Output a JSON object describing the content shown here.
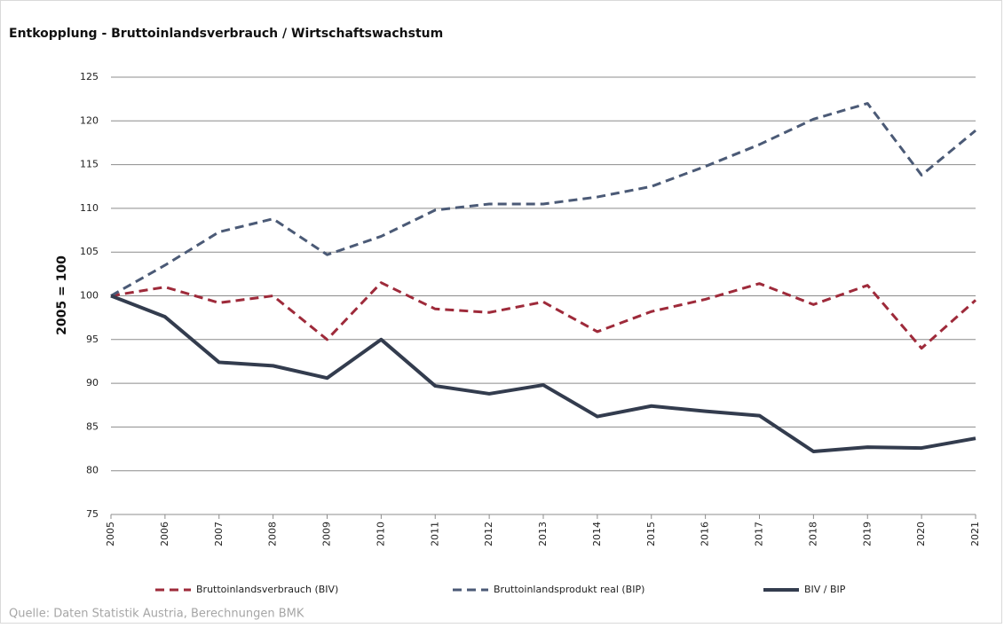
{
  "chart_data": {
    "type": "line",
    "title": "Entkopplung - Bruttoinlandsverbrauch / Wirtschaftswachstum",
    "y_label": "2005 = 100",
    "source": "Quelle: Daten Statistik Austria, Berechnungen BMK",
    "x": [
      2005,
      2006,
      2007,
      2008,
      2009,
      2010,
      2011,
      2012,
      2013,
      2014,
      2015,
      2016,
      2017,
      2018,
      2019,
      2020,
      2021
    ],
    "xlim": [
      2005,
      2021
    ],
    "xticks": [
      2005,
      2006,
      2007,
      2008,
      2009,
      2010,
      2011,
      2012,
      2013,
      2014,
      2015,
      2016,
      2017,
      2018,
      2019,
      2020,
      2021
    ],
    "ylim": [
      75,
      125
    ],
    "yticks": [
      75,
      80,
      85,
      90,
      95,
      100,
      105,
      110,
      115,
      120,
      125
    ],
    "grid": true,
    "legend": "bottom",
    "series": [
      {
        "name": "Bruttoinlandsverbrauch (BIV)",
        "color": "#9e2a3a",
        "dashed": true,
        "values": [
          100,
          101,
          99.2,
          100,
          95,
          101.5,
          98.5,
          98.1,
          99.3,
          95.9,
          98.2,
          99.6,
          101.4,
          99,
          101.2,
          94,
          99.5
        ]
      },
      {
        "name": "Bruttoinlandsprodukt real (BIP)",
        "color": "#4b5a76",
        "dashed": true,
        "values": [
          100,
          103.5,
          107.3,
          108.8,
          104.7,
          106.8,
          109.8,
          110.5,
          110.5,
          111.3,
          112.5,
          114.8,
          117.3,
          120.2,
          122,
          113.8,
          118.9
        ]
      },
      {
        "name": "BIV / BIP",
        "color": "#333c4e",
        "dashed": false,
        "values": [
          100,
          97.6,
          92.4,
          92,
          90.6,
          95,
          89.7,
          88.8,
          89.8,
          86.2,
          87.4,
          86.8,
          86.3,
          82.2,
          82.7,
          82.6,
          83.7
        ]
      }
    ]
  }
}
